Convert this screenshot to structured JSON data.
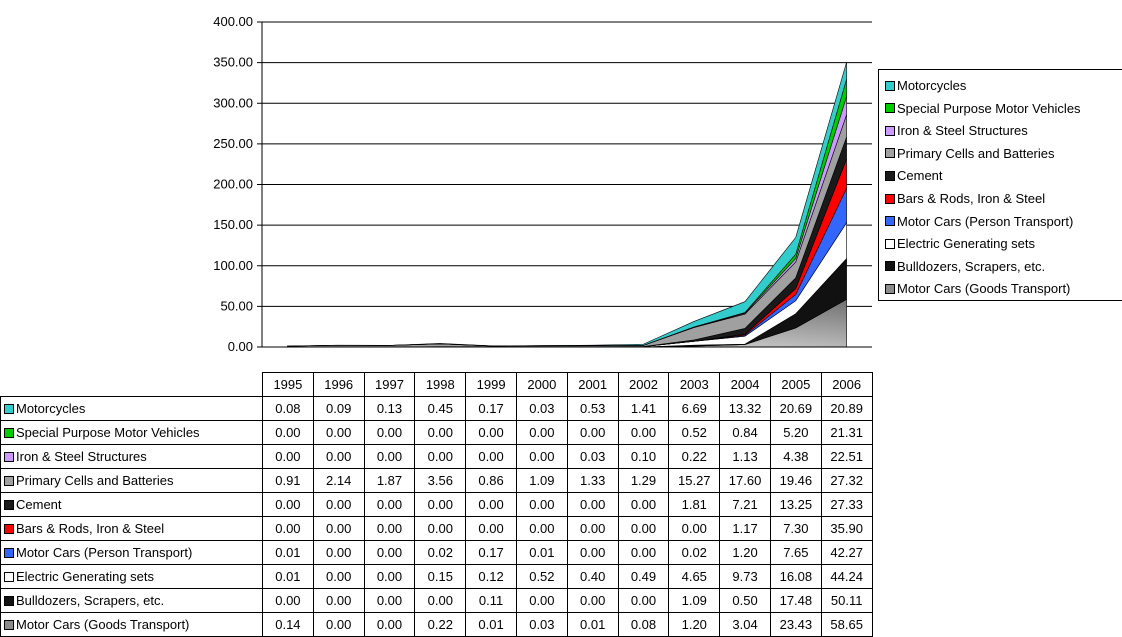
{
  "chart_data": {
    "type": "area",
    "stacked": true,
    "x": [
      "1995",
      "1996",
      "1997",
      "1998",
      "1999",
      "2000",
      "2001",
      "2002",
      "2003",
      "2004",
      "2005",
      "2006"
    ],
    "y_ticks": [
      "0.00",
      "50.00",
      "100.00",
      "150.00",
      "200.00",
      "250.00",
      "300.00",
      "350.00",
      "400.00"
    ],
    "ylim": [
      0,
      400
    ],
    "grid": true,
    "legend_position": "right",
    "series": [
      {
        "name": "Motorcycles",
        "color": "#33CCCC",
        "values": [
          0.08,
          0.09,
          0.13,
          0.45,
          0.17,
          0.03,
          0.53,
          1.41,
          6.69,
          13.32,
          20.69,
          20.89
        ],
        "display": [
          "0.08",
          "0.09",
          "0.13",
          "0.45",
          "0.17",
          "0.03",
          "0.53",
          "1.41",
          "6.69",
          "13.32",
          "20.69",
          "20.89"
        ]
      },
      {
        "name": "Special Purpose Motor Vehicles",
        "color": "#00CC00",
        "values": [
          0,
          0,
          0,
          0,
          0,
          0,
          0,
          0,
          0.52,
          0.84,
          5.2,
          21.31
        ],
        "display": [
          "0.00",
          "0.00",
          "0.00",
          "0.00",
          "0.00",
          "0.00",
          "0.00",
          "0.00",
          "0.52",
          "0.84",
          "5.20",
          "21.31"
        ]
      },
      {
        "name": "Iron & Steel Structures",
        "color": "#CC99FF",
        "values": [
          0,
          0,
          0,
          0,
          0,
          0,
          0.03,
          0.1,
          0.22,
          1.13,
          4.38,
          22.51
        ],
        "display": [
          "0.00",
          "0.00",
          "0.00",
          "0.00",
          "0.00",
          "0.00",
          "0.03",
          "0.10",
          "0.22",
          "1.13",
          "4.38",
          "22.51"
        ]
      },
      {
        "name": "Primary Cells and Batteries",
        "color": "#A0A0A0",
        "values": [
          0.91,
          2.14,
          1.87,
          3.56,
          0.86,
          1.09,
          1.33,
          1.29,
          15.27,
          17.6,
          19.46,
          27.32
        ],
        "display": [
          "0.91",
          "2.14",
          "1.87",
          "3.56",
          "0.86",
          "1.09",
          "1.33",
          "1.29",
          "15.27",
          "17.60",
          "19.46",
          "27.32"
        ]
      },
      {
        "name": "Cement",
        "color": "#1A1A1A",
        "values": [
          0,
          0,
          0,
          0,
          0,
          0,
          0,
          0,
          1.81,
          7.21,
          13.25,
          27.33
        ],
        "display": [
          "0.00",
          "0.00",
          "0.00",
          "0.00",
          "0.00",
          "0.00",
          "0.00",
          "0.00",
          "1.81",
          "7.21",
          "13.25",
          "27.33"
        ]
      },
      {
        "name": "Bars & Rods, Iron & Steel",
        "color": "#FF0000",
        "values": [
          0,
          0,
          0,
          0,
          0,
          0,
          0,
          0,
          0,
          1.17,
          7.3,
          35.9
        ],
        "display": [
          "0.00",
          "0.00",
          "0.00",
          "0.00",
          "0.00",
          "0.00",
          "0.00",
          "0.00",
          "0.00",
          "1.17",
          "7.30",
          "35.90"
        ]
      },
      {
        "name": "Motor Cars (Person Transport)",
        "color": "#3366FF",
        "values": [
          0.01,
          0,
          0,
          0.02,
          0.17,
          0.01,
          0,
          0,
          0.02,
          1.2,
          7.65,
          42.27
        ],
        "display": [
          "0.01",
          "0.00",
          "0.00",
          "0.02",
          "0.17",
          "0.01",
          "0.00",
          "0.00",
          "0.02",
          "1.20",
          "7.65",
          "42.27"
        ]
      },
      {
        "name": "Electric Generating sets",
        "color": "#FFFFFF",
        "values": [
          0.01,
          0,
          0,
          0.15,
          0.12,
          0.52,
          0.4,
          0.49,
          4.65,
          9.73,
          16.08,
          44.24
        ],
        "display": [
          "0.01",
          "0.00",
          "0.00",
          "0.15",
          "0.12",
          "0.52",
          "0.40",
          "0.49",
          "4.65",
          "9.73",
          "16.08",
          "44.24"
        ]
      },
      {
        "name": "Bulldozers, Scrapers, etc.",
        "color": "#111111",
        "values": [
          0,
          0,
          0,
          0,
          0.11,
          0,
          0,
          0,
          1.09,
          0.5,
          17.48,
          50.11
        ],
        "display": [
          "0.00",
          "0.00",
          "0.00",
          "0.00",
          "0.11",
          "0.00",
          "0.00",
          "0.00",
          "1.09",
          "0.50",
          "17.48",
          "50.11"
        ]
      },
      {
        "name": "Motor Cars (Goods Transport)",
        "color": "#8C8C8C",
        "values": [
          0.14,
          0,
          0,
          0.22,
          0.01,
          0.03,
          0.01,
          0.08,
          1.2,
          3.04,
          23.43,
          58.65
        ],
        "display": [
          "0.14",
          "0.00",
          "0.00",
          "0.22",
          "0.01",
          "0.03",
          "0.01",
          "0.08",
          "1.20",
          "3.04",
          "23.43",
          "58.65"
        ]
      }
    ]
  }
}
